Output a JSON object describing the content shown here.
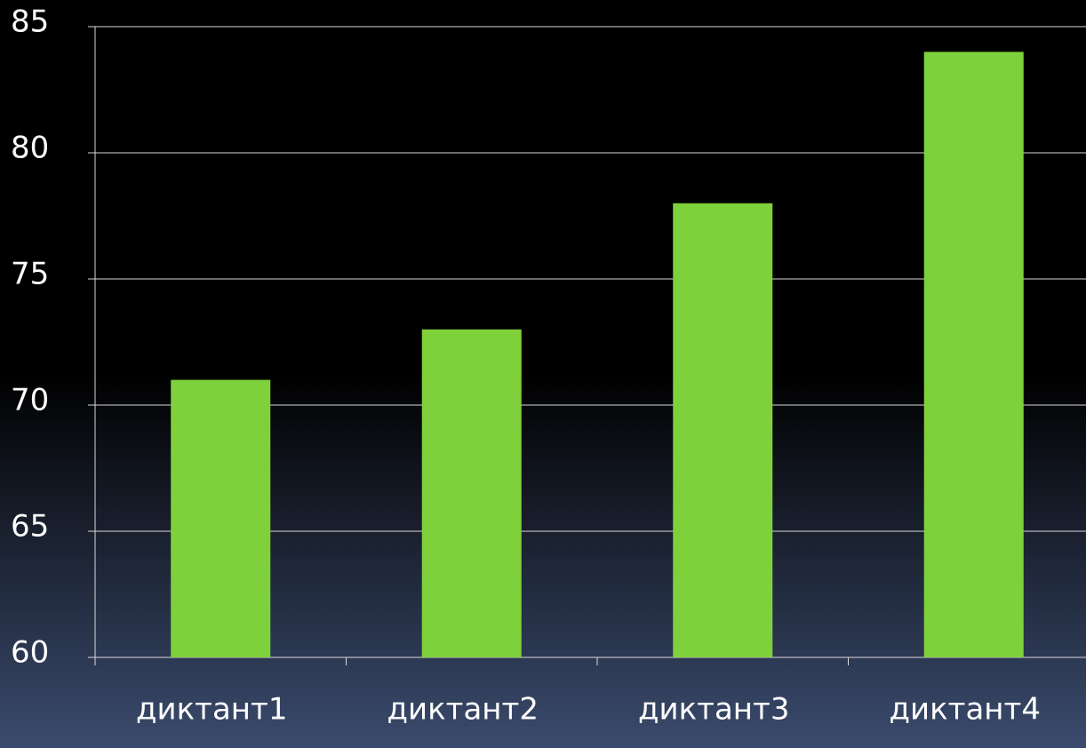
{
  "chart_data": {
    "type": "bar",
    "categories": [
      "диктант1",
      "диктант2",
      "диктант3",
      "диктант4"
    ],
    "values": [
      71,
      73,
      78,
      84
    ],
    "color": "#7fd13b",
    "ylim": [
      60,
      85
    ],
    "yticks": [
      60,
      65,
      70,
      75,
      80,
      85
    ],
    "grid": true
  }
}
